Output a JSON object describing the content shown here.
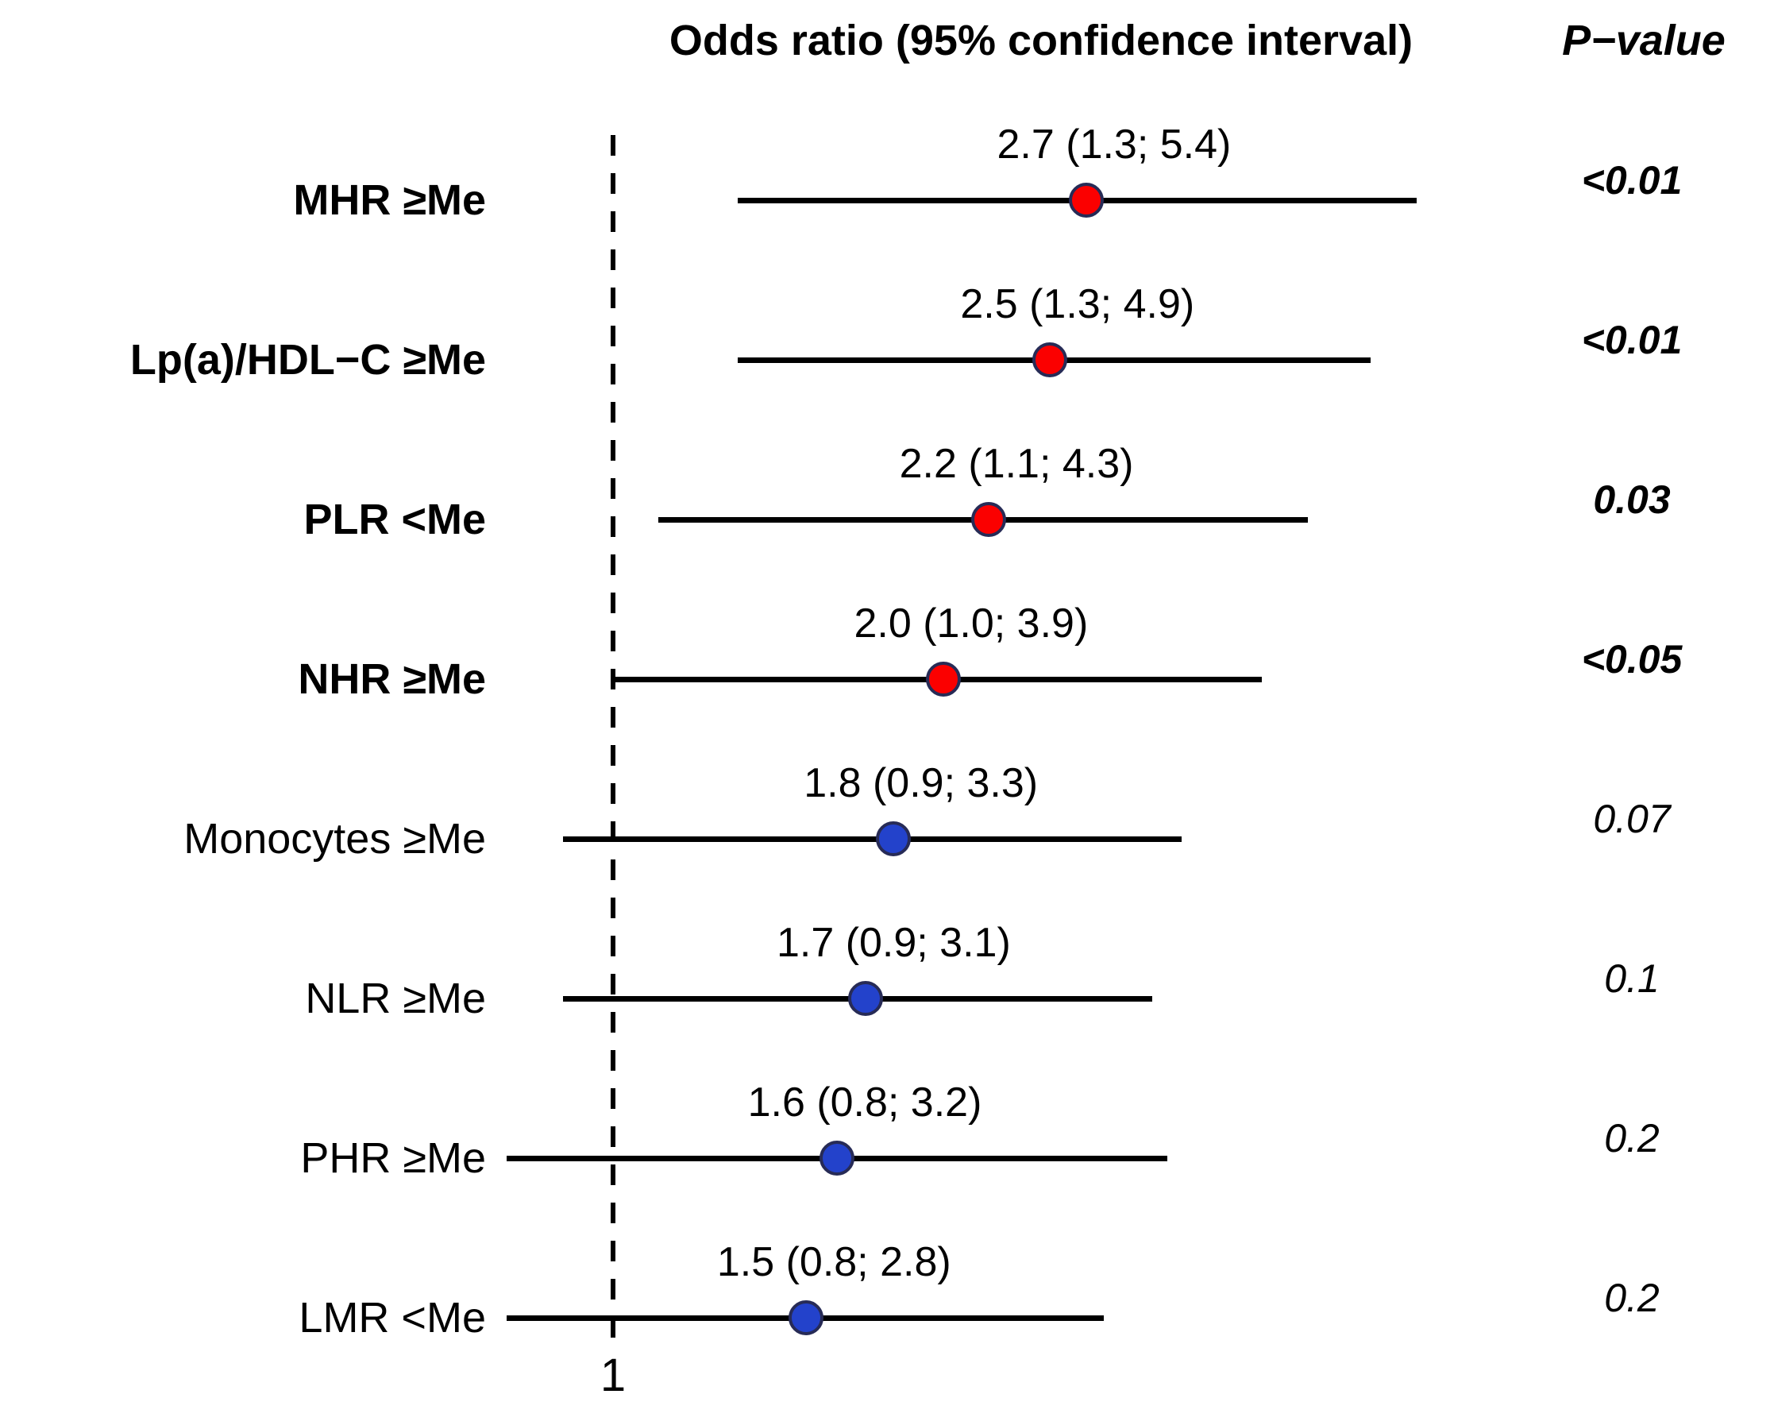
{
  "colors": {
    "significant_fill": "#fb0000",
    "nonsignificant_fill": "#2342cb",
    "marker_outline": "#272b56",
    "line": "#000000"
  },
  "chart_data": {
    "type": "forest",
    "title": "Odds ratio (95% confidence interval)",
    "p_column_title": "P−value",
    "x_scale": "log",
    "reference_line_value": 1,
    "reference_label": "1",
    "rows": [
      {
        "label": "MHR ≥Me",
        "or": 2.7,
        "ci_low": 1.3,
        "ci_high": 5.4,
        "estimate_text": "2.7 (1.3; 5.4)",
        "p_value": "<0.01",
        "significant": true
      },
      {
        "label": "Lp(a)/HDL−C ≥Me",
        "or": 2.5,
        "ci_low": 1.3,
        "ci_high": 4.9,
        "estimate_text": "2.5 (1.3; 4.9)",
        "p_value": "<0.01",
        "significant": true
      },
      {
        "label": "PLR <Me",
        "or": 2.2,
        "ci_low": 1.1,
        "ci_high": 4.3,
        "estimate_text": "2.2 (1.1; 4.3)",
        "p_value": "0.03",
        "significant": true
      },
      {
        "label": "NHR ≥Me",
        "or": 2.0,
        "ci_low": 1.0,
        "ci_high": 3.9,
        "estimate_text": "2.0 (1.0; 3.9)",
        "p_value": "<0.05",
        "significant": true
      },
      {
        "label": "Monocytes ≥Me",
        "or": 1.8,
        "ci_low": 0.9,
        "ci_high": 3.3,
        "estimate_text": "1.8 (0.9; 3.3)",
        "p_value": "0.07",
        "significant": false
      },
      {
        "label": "NLR ≥Me",
        "or": 1.7,
        "ci_low": 0.9,
        "ci_high": 3.1,
        "estimate_text": "1.7 (0.9; 3.1)",
        "p_value": "0.1",
        "significant": false
      },
      {
        "label": "PHR ≥Me",
        "or": 1.6,
        "ci_low": 0.8,
        "ci_high": 3.2,
        "estimate_text": "1.6 (0.8; 3.2)",
        "p_value": "0.2",
        "significant": false
      },
      {
        "label": "LMR <Me",
        "or": 1.5,
        "ci_low": 0.8,
        "ci_high": 2.8,
        "estimate_text": "1.5 (0.8; 2.8)",
        "p_value": "0.2",
        "significant": false
      }
    ]
  }
}
